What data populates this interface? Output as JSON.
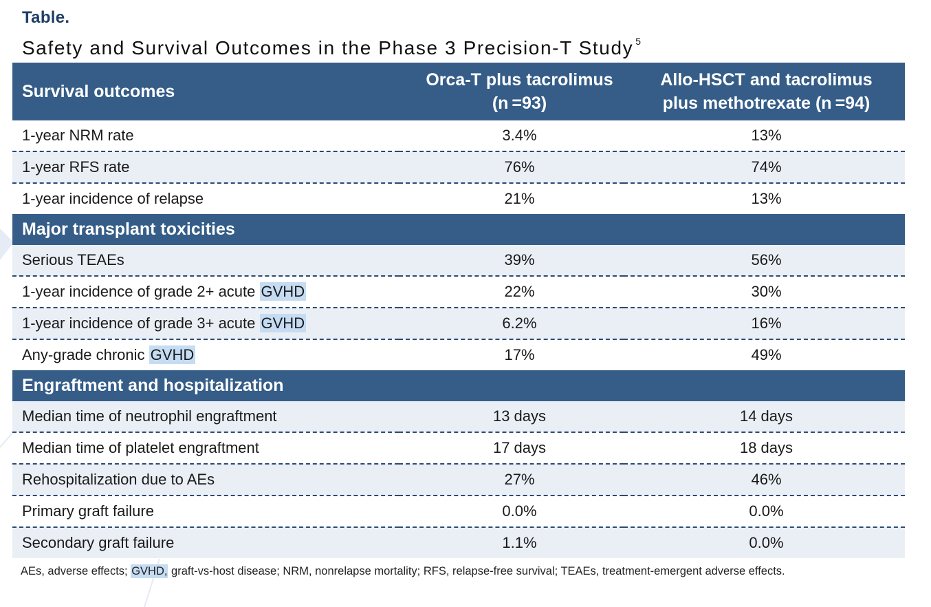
{
  "header": {
    "label": "Table.",
    "title": "Safety and Survival Outcomes in the Phase 3 Precision-T Study",
    "title_ref": "5"
  },
  "table": {
    "col1_header": "Survival outcomes",
    "col2_header_line1": "Orca-T plus tacrolimus",
    "col2_header_line2": "(n =93)",
    "col3_header_line1": "Allo-HSCT and tacrolimus",
    "col3_header_line2": "plus methotrexate (n =94)",
    "survival": [
      {
        "label": "1-year NRM rate",
        "orca": "3.4%",
        "allo": "13%"
      },
      {
        "label": "1-year RFS rate",
        "orca": "76%",
        "allo": "74%"
      },
      {
        "label": "1-year incidence of relapse",
        "orca": "21%",
        "allo": "13%"
      }
    ],
    "toxicities_title": "Major transplant toxicities",
    "toxicities": [
      {
        "label": "Serious TEAEs",
        "orca": "39%",
        "allo": "56%"
      },
      {
        "label": "1-year incidence of grade 2+ acute ",
        "label_hl": "GVHD",
        "orca": "22%",
        "allo": "30%"
      },
      {
        "label": "1-year incidence of grade 3+ acute ",
        "label_hl": "GVHD",
        "orca": "6.2%",
        "allo": "16%"
      },
      {
        "label": "Any-grade chronic ",
        "label_hl": "GVHD",
        "orca": "17%",
        "allo": "49%"
      }
    ],
    "engraftment_title": "Engraftment and hospitalization",
    "engraftment": [
      {
        "label": "Median time of neutrophil engraftment",
        "orca": "13 days",
        "allo": "14 days"
      },
      {
        "label": "Median time of platelet engraftment",
        "orca": "17 days",
        "allo": "18 days"
      },
      {
        "label": "Rehospitalization due to AEs",
        "orca": "27%",
        "allo": "46%"
      },
      {
        "label": "Primary graft failure",
        "orca": "0.0%",
        "allo": "0.0%"
      },
      {
        "label": "Secondary graft failure",
        "orca": "1.1%",
        "allo": "0.0%"
      }
    ]
  },
  "footnote": {
    "part1": "AEs, adverse effects; ",
    "highlight": "GVHD,",
    "part2": " graft-vs-host disease; NRM, nonrelapse mortality; RFS, relapse-free survival; TEAEs, treatment-emergent adverse effects."
  },
  "colors": {
    "header_bg": "#355d88",
    "row_shade": "#eaeff6",
    "highlight": "#c5dcf2",
    "title_blue": "#1f3d66"
  }
}
